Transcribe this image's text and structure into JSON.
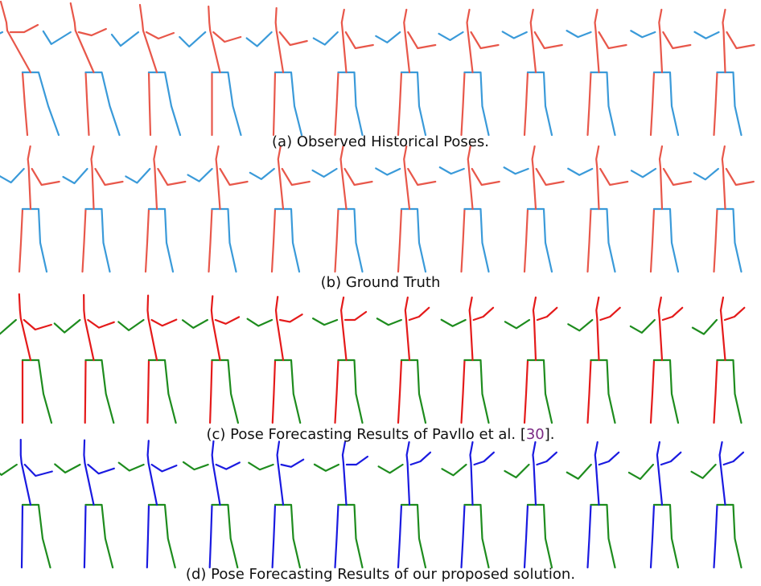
{
  "captions": {
    "a": "(a) Observed Historical Poses.",
    "b": "(b) Ground Truth",
    "c": {
      "before": "(c) Pose Forecasting Results of Pavllo et al. [",
      "citation": "30",
      "after": "]."
    },
    "d": "(d) Pose Forecasting Results of our proposed solution."
  }
}
